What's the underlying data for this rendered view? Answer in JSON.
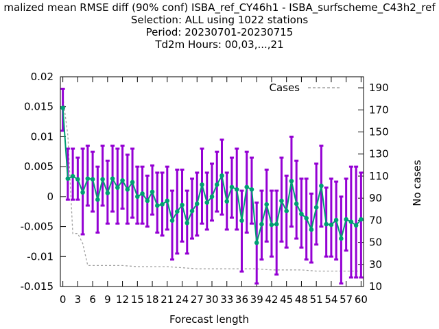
{
  "chart_data": {
    "type": "line",
    "title_lines": [
      "malized mean RMSE diff (90% conf) ISBA_ref_CY46h1 - ISBA_surfscheme_C43h2_ref",
      "Selection: ALL using  1022 stations",
      "Period: 20230701-20230715",
      "Td2m   Hours:  00,03,...,21"
    ],
    "xlabel": "Forecast length",
    "ylabel_right": "No cases",
    "x_ticks": [
      "0",
      "3",
      "6",
      "9",
      "12",
      "15",
      "18",
      "21",
      "24",
      "27",
      "30",
      "33",
      "36",
      "39",
      "42",
      "45",
      "48",
      "51",
      "54",
      "57",
      "60"
    ],
    "y_ticks_left": [
      "0.02",
      "0.015",
      "0.01",
      "0.005",
      "0",
      "-0.005",
      "-0.01",
      "-0.015"
    ],
    "y_ticks_right": [
      "190",
      "170",
      "150",
      "130",
      "110",
      "90",
      "70",
      "50",
      "30",
      "10"
    ],
    "ylim_left": [
      -0.015,
      0.02
    ],
    "ylim_right": [
      10,
      200
    ],
    "xlim": [
      -0.5,
      60.5
    ],
    "legend": {
      "label": "Cases",
      "position": "top-right"
    },
    "colors": {
      "errorbar": "#9400d3",
      "mean_line": "#009e73",
      "cases_line": "#a0a0a0"
    },
    "series": [
      {
        "kind": "mean_with_ci",
        "x": [
          0,
          1,
          2,
          3,
          4,
          5,
          6,
          7,
          8,
          9,
          10,
          11,
          12,
          13,
          14,
          15,
          16,
          17,
          18,
          19,
          20,
          21,
          22,
          23,
          24,
          25,
          26,
          27,
          28,
          29,
          30,
          31,
          32,
          33,
          34,
          35,
          36,
          37,
          38,
          39,
          40,
          41,
          42,
          43,
          44,
          45,
          46,
          47,
          48,
          49,
          50,
          51,
          52,
          53,
          54,
          55,
          56,
          57,
          58,
          59,
          60
        ],
        "mean": [
          0.0148,
          0.003,
          0.0034,
          0.0029,
          0.0007,
          0.003,
          0.0029,
          -0.0005,
          0.0029,
          0.0006,
          0.003,
          0.0015,
          0.0027,
          0.0012,
          0.0024,
          0.0,
          0.0005,
          -0.0007,
          0.0008,
          -0.0015,
          -0.0013,
          -0.0007,
          -0.004,
          -0.0025,
          -0.0014,
          -0.0044,
          -0.0024,
          -0.0012,
          0.002,
          -0.001,
          0.0,
          0.002,
          0.0035,
          -0.0008,
          0.0016,
          0.0012,
          -0.004,
          0.0016,
          0.0012,
          -0.0077,
          -0.0046,
          -0.0013,
          -0.0047,
          -0.0046,
          -0.0007,
          -0.0024,
          0.0026,
          -0.0012,
          -0.0029,
          -0.0036,
          -0.0055,
          -0.0018,
          0.0018,
          -0.0046,
          -0.0047,
          -0.0039,
          -0.007,
          -0.0038,
          -0.0042,
          -0.0048,
          -0.0038
        ],
        "upper": [
          0.018,
          0.008,
          0.008,
          0.0065,
          0.008,
          0.0085,
          0.0075,
          0.005,
          0.0085,
          0.006,
          0.0085,
          0.008,
          0.0085,
          0.007,
          0.008,
          0.005,
          0.005,
          0.0035,
          0.0052,
          0.004,
          0.004,
          0.005,
          0.001,
          0.0045,
          0.0045,
          0.001,
          0.003,
          0.004,
          0.008,
          0.004,
          0.0055,
          0.0075,
          0.0095,
          0.004,
          0.0065,
          0.008,
          0.001,
          0.0075,
          0.0065,
          -0.001,
          0.001,
          0.0045,
          0.001,
          0.001,
          0.0065,
          0.0035,
          0.01,
          0.006,
          0.003,
          0.003,
          0.0005,
          0.0055,
          0.0085,
          0.0015,
          0.003,
          0.0025,
          0.0,
          0.003,
          0.005,
          0.005,
          0.004
        ],
        "lower": [
          0.011,
          -0.0005,
          -0.0005,
          -0.0005,
          -0.0063,
          -0.0015,
          -0.0025,
          -0.006,
          -0.0015,
          -0.0045,
          -0.0025,
          -0.0045,
          -0.002,
          -0.0045,
          -0.0035,
          -0.0045,
          -0.0045,
          -0.005,
          -0.003,
          -0.006,
          -0.0065,
          -0.0055,
          -0.0105,
          -0.0095,
          -0.0075,
          -0.0095,
          -0.007,
          -0.0065,
          -0.0045,
          -0.0055,
          -0.004,
          -0.0025,
          -0.003,
          -0.0055,
          -0.0035,
          -0.0055,
          -0.0125,
          -0.006,
          -0.0045,
          -0.0145,
          -0.0105,
          -0.0075,
          -0.01,
          -0.013,
          -0.0075,
          -0.0085,
          -0.005,
          -0.007,
          -0.0085,
          -0.0105,
          -0.011,
          -0.008,
          -0.005,
          -0.01,
          -0.01,
          -0.0105,
          -0.0145,
          -0.009,
          -0.0135,
          -0.0135,
          -0.0135
        ]
      },
      {
        "kind": "cases",
        "name": "Cases",
        "x": [
          0,
          1,
          2,
          3,
          4,
          5,
          6,
          9,
          12,
          15,
          18,
          21,
          24,
          27,
          30,
          33,
          36,
          39,
          42,
          45,
          48,
          51,
          54,
          57,
          60
        ],
        "values": [
          182,
          147,
          58,
          58,
          49,
          29,
          29,
          29,
          29,
          28,
          28,
          28,
          27,
          26,
          26,
          26,
          26,
          26,
          25,
          25,
          25,
          24,
          24,
          24,
          24
        ]
      }
    ]
  }
}
